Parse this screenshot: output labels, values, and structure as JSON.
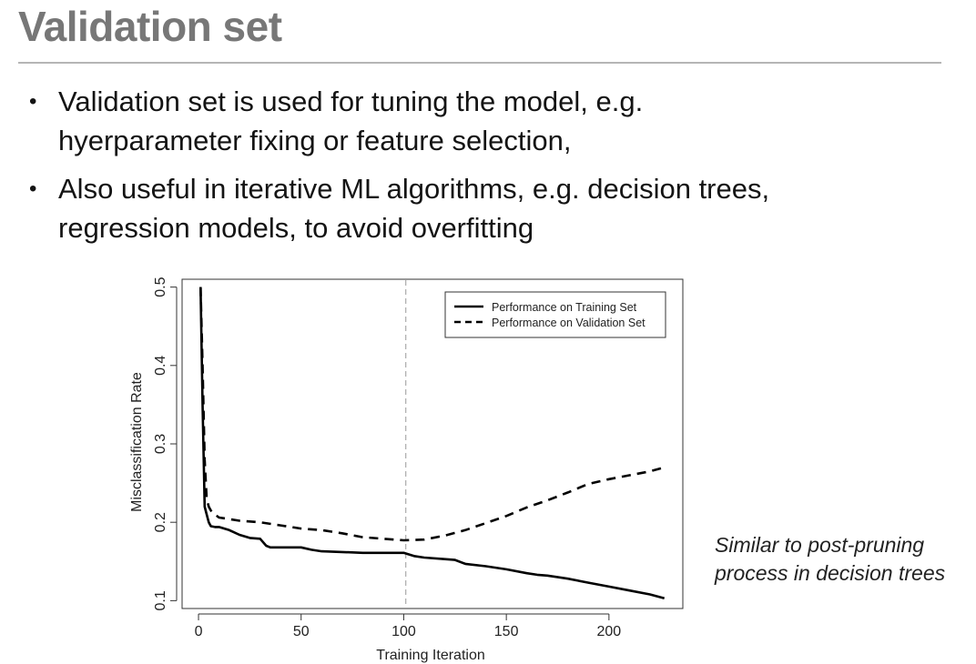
{
  "slide": {
    "title": "Validation set",
    "bullets": [
      {
        "lines": [
          "Validation set is used for tuning the model, e.g.",
          "hyerparameter fixing or feature selection,"
        ]
      },
      {
        "lines": [
          "Also useful in iterative ML algorithms, e.g. decision trees,",
          "regression models, to avoid overfitting"
        ]
      }
    ],
    "note": [
      "Similar to post-pruning",
      "process in decision trees"
    ],
    "bullet_glyph": "•"
  },
  "chart_data": {
    "type": "line",
    "xlabel": "Training Iteration",
    "ylabel": "Misclassification Rate",
    "xlim": [
      -8,
      236
    ],
    "ylim": [
      0.09,
      0.51
    ],
    "xticks": [
      0,
      50,
      100,
      150,
      200
    ],
    "yticks": [
      0.1,
      0.2,
      0.3,
      0.4,
      0.5
    ],
    "reference_line_x": 101,
    "legend_position": "top-right",
    "series": [
      {
        "name": "Performance on Training Set",
        "style": "solid",
        "x": [
          1,
          2,
          3,
          4,
          5,
          6,
          8,
          10,
          15,
          20,
          25,
          30,
          33,
          35,
          40,
          50,
          55,
          60,
          70,
          80,
          90,
          100,
          105,
          110,
          120,
          125,
          130,
          140,
          150,
          160,
          165,
          170,
          180,
          190,
          200,
          210,
          220,
          227
        ],
        "y": [
          0.5,
          0.35,
          0.22,
          0.21,
          0.2,
          0.195,
          0.194,
          0.194,
          0.19,
          0.184,
          0.18,
          0.179,
          0.17,
          0.168,
          0.168,
          0.168,
          0.165,
          0.163,
          0.162,
          0.161,
          0.161,
          0.161,
          0.157,
          0.155,
          0.153,
          0.152,
          0.147,
          0.144,
          0.14,
          0.135,
          0.133,
          0.132,
          0.128,
          0.123,
          0.118,
          0.113,
          0.108,
          0.103
        ]
      },
      {
        "name": "Performance on Validation Set",
        "style": "dashed",
        "x": [
          1,
          2,
          3,
          4,
          5,
          6,
          8,
          10,
          15,
          20,
          30,
          40,
          50,
          60,
          70,
          80,
          90,
          100,
          110,
          120,
          130,
          140,
          150,
          160,
          170,
          180,
          190,
          200,
          210,
          220,
          227
        ],
        "y": [
          0.5,
          0.4,
          0.28,
          0.23,
          0.22,
          0.215,
          0.21,
          0.206,
          0.204,
          0.202,
          0.2,
          0.196,
          0.192,
          0.19,
          0.186,
          0.181,
          0.179,
          0.177,
          0.178,
          0.183,
          0.19,
          0.199,
          0.208,
          0.219,
          0.228,
          0.238,
          0.249,
          0.255,
          0.26,
          0.265,
          0.27
        ]
      }
    ]
  }
}
